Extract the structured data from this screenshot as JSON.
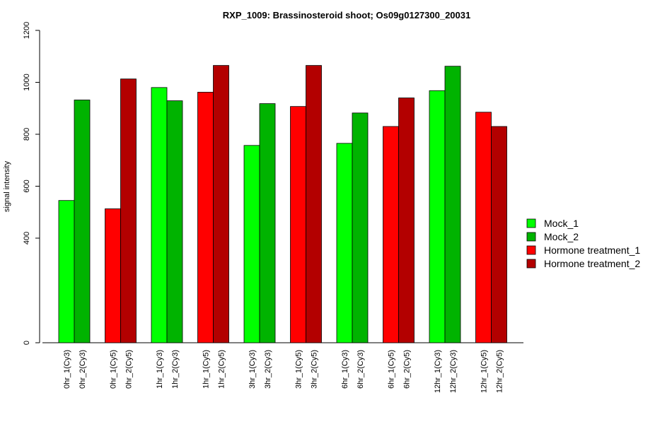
{
  "chart_data": {
    "type": "bar",
    "title": "RXP_1009: Brassinosteroid shoot; Os09g0127300_20031",
    "xlabel": "",
    "ylabel": "signal intensity",
    "ylim": [
      0,
      1200
    ],
    "yticks": [
      0,
      400,
      600,
      800,
      1000,
      1200
    ],
    "y_scale": "compressed below 400 (0 to 400 shown in a shorter span)",
    "grid": false,
    "legend_position": "right",
    "series": [
      {
        "name": "Mock_1",
        "color": "#00ff00"
      },
      {
        "name": "Mock_2",
        "color": "#00b300"
      },
      {
        "name": "Hormone treatment_1",
        "color": "#ff0000"
      },
      {
        "name": "Hormone treatment_2",
        "color": "#b30000"
      }
    ],
    "groups": [
      {
        "bars": [
          {
            "label": "0hr_1(Cy3)",
            "value": 545,
            "series": 0
          },
          {
            "label": "0hr_2(Cy3)",
            "value": 932,
            "series": 1
          }
        ]
      },
      {
        "bars": [
          {
            "label": "0hr_1(Cy5)",
            "value": 513,
            "series": 2
          },
          {
            "label": "0hr_2(Cy5)",
            "value": 1013,
            "series": 3
          }
        ]
      },
      {
        "bars": [
          {
            "label": "1hr_1(Cy3)",
            "value": 980,
            "series": 0
          },
          {
            "label": "1hr_2(Cy3)",
            "value": 929,
            "series": 1
          }
        ]
      },
      {
        "bars": [
          {
            "label": "1hr_1(Cy5)",
            "value": 962,
            "series": 2
          },
          {
            "label": "1hr_2(Cy5)",
            "value": 1065,
            "series": 3
          }
        ]
      },
      {
        "bars": [
          {
            "label": "3hr_1(Cy3)",
            "value": 757,
            "series": 0
          },
          {
            "label": "3hr_2(Cy3)",
            "value": 918,
            "series": 1
          }
        ]
      },
      {
        "bars": [
          {
            "label": "3hr_1(Cy5)",
            "value": 907,
            "series": 2
          },
          {
            "label": "3hr_2(Cy5)",
            "value": 1065,
            "series": 3
          }
        ]
      },
      {
        "bars": [
          {
            "label": "6hr_1(Cy3)",
            "value": 765,
            "series": 0
          },
          {
            "label": "6hr_2(Cy3)",
            "value": 882,
            "series": 1
          }
        ]
      },
      {
        "bars": [
          {
            "label": "6hr_1(Cy5)",
            "value": 830,
            "series": 2
          },
          {
            "label": "6hr_2(Cy5)",
            "value": 940,
            "series": 3
          }
        ]
      },
      {
        "bars": [
          {
            "label": "12hr_1(Cy3)",
            "value": 968,
            "series": 0
          },
          {
            "label": "12hr_2(Cy3)",
            "value": 1062,
            "series": 1
          }
        ]
      },
      {
        "bars": [
          {
            "label": "12hr_1(Cy5)",
            "value": 885,
            "series": 2
          },
          {
            "label": "12hr_2(Cy5)",
            "value": 830,
            "series": 3
          }
        ]
      }
    ]
  }
}
